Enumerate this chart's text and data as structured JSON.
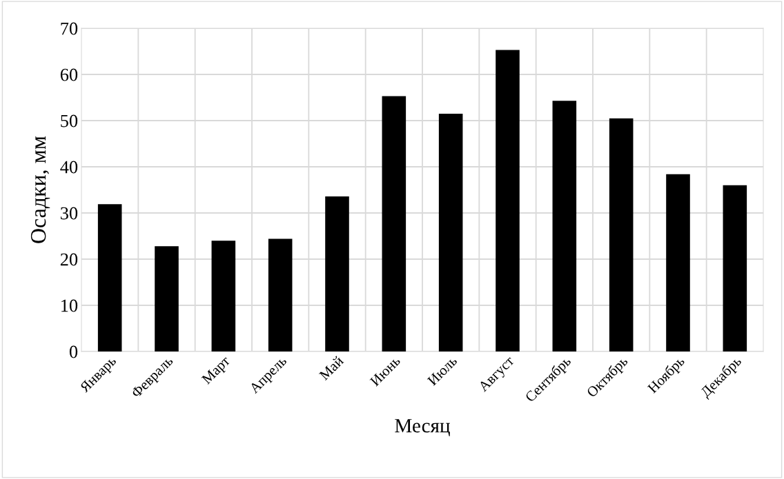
{
  "chart_data": {
    "type": "bar",
    "xlabel": "Месяц",
    "ylabel": "Осадки, мм",
    "categories": [
      "Январь",
      "Февраль",
      "Март",
      "Апрель",
      "Май",
      "Июнь",
      "Июль",
      "Август",
      "Сентябрь",
      "Октябрь",
      "Ноябрь",
      "Декабрь"
    ],
    "values": [
      31.9,
      22.8,
      24.0,
      24.4,
      33.6,
      55.3,
      51.5,
      65.3,
      54.3,
      50.5,
      38.4,
      36.0
    ],
    "color": "#000000",
    "ylim": [
      0,
      70
    ],
    "yticks": [
      0,
      10,
      20,
      30,
      40,
      50,
      60,
      70
    ],
    "grid": true
  }
}
